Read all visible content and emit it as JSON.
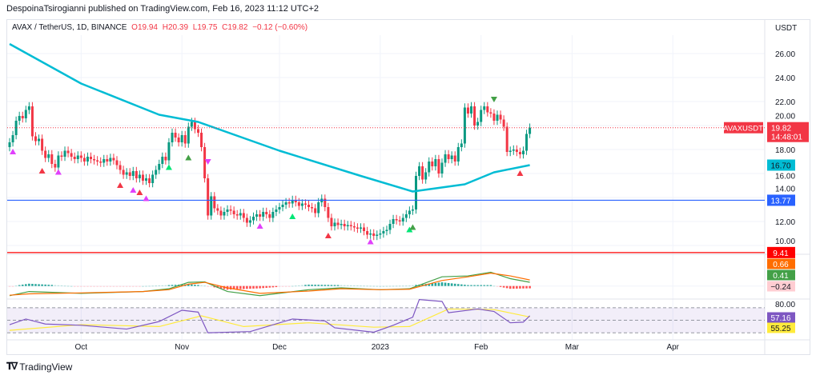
{
  "header": {
    "text": "DespoinaTsirogianni published on TradingView.com, Feb 16, 2023 11:12 UTC+2"
  },
  "legend": {
    "symbol": "AVAX / TetherUS, 1D, BINANCE",
    "open": "O19.94",
    "high": "H20.39",
    "low": "L19.75",
    "close": "C19.82",
    "change": "−0.12 (−0.60%)"
  },
  "footer": {
    "brand": "TradingView",
    "logo_icon": "tradingview-logo-icon"
  },
  "colors": {
    "up": "#089981",
    "down": "#f23645",
    "ma": "#00bcd4",
    "support": "#2962ff",
    "low_line": "#ff0000",
    "macd": "#43a047",
    "signal": "#ff6d00",
    "rsi": "#7e57c2",
    "rsi_ma": "#ffeb3b"
  },
  "chart_data": {
    "type": "candlestick",
    "title": "AVAX / TetherUS, 1D, BINANCE",
    "price_axis": {
      "unit": "USDT",
      "ticks": [
        "26.00",
        "24.00",
        "22.00",
        "20.00",
        "18.00",
        "16.00",
        "14.00",
        "12.00",
        "10.00"
      ],
      "ylim": [
        9.2,
        27.6
      ]
    },
    "date_axis": {
      "ticks": [
        {
          "label": "Oct",
          "date": "2022-10-01"
        },
        {
          "label": "Nov",
          "date": "2022-11-01"
        },
        {
          "label": "Dec",
          "date": "2022-12-01"
        },
        {
          "label": "2023",
          "date": "2023-01-01"
        },
        {
          "label": "Feb",
          "date": "2023-02-01"
        },
        {
          "label": "Mar",
          "date": "2023-03-01"
        },
        {
          "label": "Apr",
          "date": "2023-04-01"
        }
      ]
    },
    "closes": [
      {
        "month": "2022-09",
        "first_day": 9,
        "values": [
          18.6,
          19.2,
          20.4,
          20.8,
          20.6,
          21.3,
          21.6,
          19.1,
          18.7,
          18.9,
          17.9,
          17.3,
          17.6,
          16.8,
          16.5,
          17.5,
          17.4,
          17.9,
          17.7,
          17.4,
          17.2,
          17.5
        ]
      },
      {
        "month": "2022-10",
        "first_day": 1,
        "values": [
          17.3,
          17.0,
          17.4,
          17.2,
          17.1,
          17.0,
          16.9,
          17.2,
          17.0,
          17.3,
          17.1,
          16.7,
          16.3,
          15.9,
          16.1,
          15.8,
          16.2,
          15.6,
          15.9,
          15.4,
          15.6,
          15.2,
          15.9,
          16.3,
          16.8,
          17.4,
          17.1,
          18.6,
          19.4,
          19.0,
          18.6
        ]
      },
      {
        "month": "2022-11",
        "first_day": 1,
        "values": [
          19.2,
          18.5,
          19.9,
          20.3,
          19.7,
          19.4,
          18.2,
          15.6,
          12.5,
          14.1,
          13.1,
          12.9,
          12.5,
          12.8,
          13.0,
          12.9,
          12.6,
          12.5,
          12.7,
          12.3,
          11.9,
          12.1,
          12.4,
          12.6,
          12.4,
          12.8,
          12.6,
          12.3,
          12.8,
          13.0
        ]
      },
      {
        "month": "2022-12",
        "first_day": 1,
        "values": [
          13.2,
          13.4,
          13.6,
          13.5,
          13.8,
          13.6,
          13.3,
          13.5,
          13.4,
          13.2,
          13.1,
          12.7,
          13.6,
          13.9,
          13.2,
          12.3,
          11.6,
          11.9,
          11.7,
          11.8,
          11.6,
          11.7,
          11.6,
          11.5,
          11.4,
          11.5,
          11.2,
          10.9,
          11.0,
          10.8,
          10.9
        ]
      },
      {
        "month": "2023-01",
        "first_day": 1,
        "values": [
          11.0,
          11.2,
          11.3,
          11.8,
          12.2,
          12.1,
          12.0,
          12.3,
          12.6,
          12.9,
          13.0,
          15.8,
          16.6,
          15.5,
          16.1,
          17.0,
          16.6,
          17.2,
          16.0,
          16.9,
          17.6,
          17.2,
          17.5,
          17.0,
          18.2,
          18.5,
          21.5,
          21.0,
          21.6,
          20.0,
          20.3
        ]
      },
      {
        "month": "2023-02",
        "first_day": 1,
        "values": [
          21.3,
          21.6,
          21.1,
          21.0,
          20.4,
          20.9,
          20.5,
          19.9,
          17.8,
          17.9,
          18.0,
          17.8,
          17.6,
          17.9,
          19.3,
          19.82
        ]
      }
    ],
    "moving_average": [
      {
        "date": "2022-09-09",
        "value": 26.8
      },
      {
        "date": "2022-10-01",
        "value": 23.5
      },
      {
        "date": "2022-10-25",
        "value": 20.9
      },
      {
        "date": "2022-11-06",
        "value": 20.3
      },
      {
        "date": "2022-12-01",
        "value": 17.9
      },
      {
        "date": "2022-12-26",
        "value": 15.8
      },
      {
        "date": "2023-01-11",
        "value": 14.5
      },
      {
        "date": "2023-01-27",
        "value": 15.1
      },
      {
        "date": "2023-02-05",
        "value": 16.1
      },
      {
        "date": "2023-02-16",
        "value": 16.7
      }
    ],
    "horizontal_lines": [
      {
        "value": 13.77,
        "label": "13.77",
        "color": "#2962ff"
      },
      {
        "value": 9.41,
        "label": "9.41",
        "color": "#ff0000"
      }
    ],
    "last_price": {
      "value": 19.82,
      "label": "19.82",
      "countdown": "14:48:01",
      "symbol_tag": "AVAXUSDT"
    },
    "ma_label": "16.70",
    "markers": [
      {
        "date": "2022-09-10",
        "dir": "up",
        "color": "#e040fb",
        "price": 17.8
      },
      {
        "date": "2022-09-19",
        "dir": "up",
        "color": "#f23645",
        "price": 16.2
      },
      {
        "date": "2022-09-24",
        "dir": "up",
        "color": "#e040fb",
        "price": 16.1
      },
      {
        "date": "2022-10-13",
        "dir": "up",
        "color": "#f23645",
        "price": 15.0
      },
      {
        "date": "2022-10-17",
        "dir": "up",
        "color": "#e040fb",
        "price": 14.6
      },
      {
        "date": "2022-10-19",
        "dir": "up",
        "color": "#f23645",
        "price": 14.4
      },
      {
        "date": "2022-10-21",
        "dir": "up",
        "color": "#e040fb",
        "price": 13.9
      },
      {
        "date": "2022-10-28",
        "dir": "up",
        "color": "#00e676",
        "price": 16.5
      },
      {
        "date": "2022-11-03",
        "dir": "up",
        "color": "#43a047",
        "price": 17.3
      },
      {
        "date": "2022-11-09",
        "dir": "down",
        "color": "#e040fb",
        "price": 17.0
      },
      {
        "date": "2022-11-25",
        "dir": "up",
        "color": "#e040fb",
        "price": 11.6
      },
      {
        "date": "2022-12-05",
        "dir": "up",
        "color": "#00e676",
        "price": 12.4
      },
      {
        "date": "2022-12-16",
        "dir": "up",
        "color": "#f23645",
        "price": 10.8
      },
      {
        "date": "2022-12-29",
        "dir": "up",
        "color": "#e040fb",
        "price": 10.3
      },
      {
        "date": "2023-01-10",
        "dir": "up",
        "color": "#00e676",
        "price": 11.3
      },
      {
        "date": "2023-01-11",
        "dir": "up",
        "color": "#43a047",
        "price": 11.5
      },
      {
        "date": "2023-02-05",
        "dir": "down",
        "color": "#43a047",
        "price": 22.2
      },
      {
        "date": "2023-02-13",
        "dir": "up",
        "color": "#f23645",
        "price": 16.0
      }
    ],
    "macd": {
      "labels": {
        "signal": "0.66",
        "macd": "0.41",
        "histogram": "−0.24"
      },
      "ylim": [
        -1.2,
        1.8
      ],
      "points": [
        {
          "date": "2022-09-09",
          "macd": -1.05,
          "signal": -1.0
        },
        {
          "date": "2022-09-15",
          "macd": -0.6,
          "signal": -0.85
        },
        {
          "date": "2022-10-01",
          "macd": -0.8,
          "signal": -0.75
        },
        {
          "date": "2022-10-20",
          "macd": -0.6,
          "signal": -0.6
        },
        {
          "date": "2022-10-28",
          "macd": -0.3,
          "signal": -0.4
        },
        {
          "date": "2022-11-03",
          "macd": 0.4,
          "signal": 0.2
        },
        {
          "date": "2022-11-08",
          "macd": 0.45,
          "signal": 0.4
        },
        {
          "date": "2022-11-15",
          "macd": -0.6,
          "signal": -0.2
        },
        {
          "date": "2022-11-25",
          "macd": -1.05,
          "signal": -0.8
        },
        {
          "date": "2022-12-10",
          "macd": -0.4,
          "signal": -0.55
        },
        {
          "date": "2022-12-20",
          "macd": -0.2,
          "signal": -0.3
        },
        {
          "date": "2023-01-01",
          "macd": -0.4,
          "signal": -0.4
        },
        {
          "date": "2023-01-10",
          "macd": -0.3,
          "signal": -0.35
        },
        {
          "date": "2023-01-20",
          "macd": 1.0,
          "signal": 0.6
        },
        {
          "date": "2023-01-28",
          "macd": 1.1,
          "signal": 1.0
        },
        {
          "date": "2023-02-04",
          "macd": 1.5,
          "signal": 1.4
        },
        {
          "date": "2023-02-10",
          "macd": 0.8,
          "signal": 1.1
        },
        {
          "date": "2023-02-16",
          "macd": 0.41,
          "signal": 0.66
        }
      ]
    },
    "rsi": {
      "labels": {
        "rsi": "57.16",
        "ma": "55.25",
        "top_tick": "80.00"
      },
      "band": [
        30,
        70
      ],
      "ylim": [
        25,
        82
      ],
      "rsi_points": [
        {
          "date": "2022-09-09",
          "value": 43
        },
        {
          "date": "2022-09-14",
          "value": 52
        },
        {
          "date": "2022-09-20",
          "value": 44
        },
        {
          "date": "2022-10-01",
          "value": 42
        },
        {
          "date": "2022-10-15",
          "value": 36
        },
        {
          "date": "2022-10-25",
          "value": 48
        },
        {
          "date": "2022-11-01",
          "value": 66
        },
        {
          "date": "2022-11-06",
          "value": 63
        },
        {
          "date": "2022-11-09",
          "value": 30
        },
        {
          "date": "2022-11-22",
          "value": 32
        },
        {
          "date": "2022-12-05",
          "value": 52
        },
        {
          "date": "2022-12-15",
          "value": 49
        },
        {
          "date": "2022-12-18",
          "value": 38
        },
        {
          "date": "2022-12-30",
          "value": 31
        },
        {
          "date": "2023-01-05",
          "value": 42
        },
        {
          "date": "2023-01-11",
          "value": 55
        },
        {
          "date": "2023-01-13",
          "value": 83
        },
        {
          "date": "2023-01-20",
          "value": 80
        },
        {
          "date": "2023-01-22",
          "value": 62
        },
        {
          "date": "2023-01-31",
          "value": 68
        },
        {
          "date": "2023-02-05",
          "value": 64
        },
        {
          "date": "2023-02-10",
          "value": 46
        },
        {
          "date": "2023-02-14",
          "value": 47
        },
        {
          "date": "2023-02-16",
          "value": 57.16
        }
      ],
      "ma_points": [
        {
          "date": "2022-09-09",
          "value": 34
        },
        {
          "date": "2022-10-01",
          "value": 43
        },
        {
          "date": "2022-10-25",
          "value": 40
        },
        {
          "date": "2022-11-07",
          "value": 57
        },
        {
          "date": "2022-11-20",
          "value": 40
        },
        {
          "date": "2022-12-10",
          "value": 46
        },
        {
          "date": "2022-12-30",
          "value": 39
        },
        {
          "date": "2023-01-10",
          "value": 40
        },
        {
          "date": "2023-01-22",
          "value": 68
        },
        {
          "date": "2023-02-05",
          "value": 67
        },
        {
          "date": "2023-02-16",
          "value": 55.25
        }
      ]
    }
  }
}
